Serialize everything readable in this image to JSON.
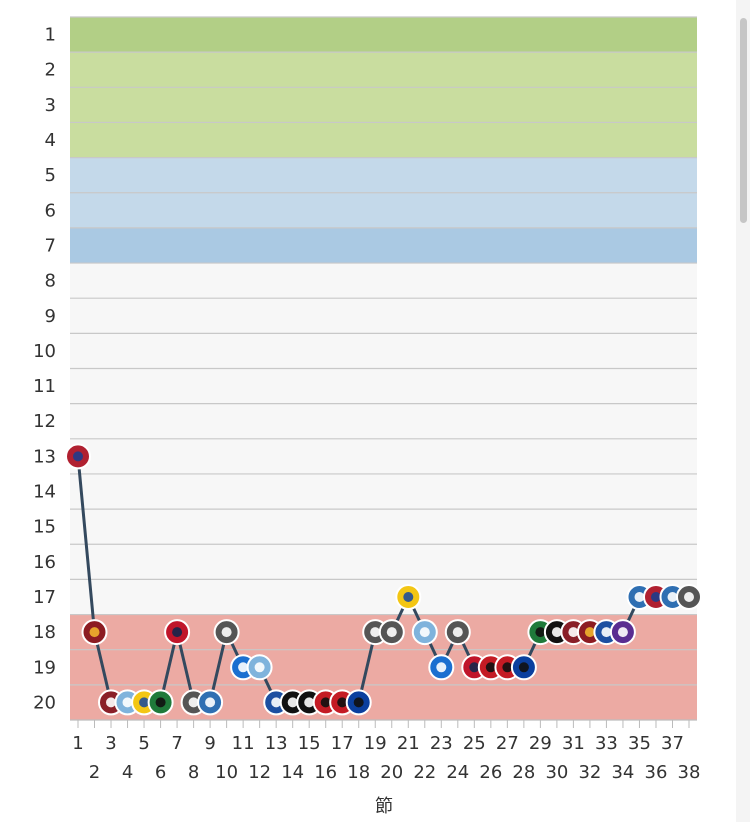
{
  "chart_data": {
    "type": "line",
    "xlabel": "節",
    "ylabel": "",
    "title": "",
    "x_ticks": [
      1,
      2,
      3,
      4,
      5,
      6,
      7,
      8,
      9,
      10,
      11,
      12,
      13,
      14,
      15,
      16,
      17,
      18,
      19,
      20,
      21,
      22,
      23,
      24,
      25,
      26,
      27,
      28,
      29,
      30,
      31,
      32,
      33,
      34,
      35,
      36,
      37,
      38
    ],
    "y_ticks": [
      1,
      2,
      3,
      4,
      5,
      6,
      7,
      8,
      9,
      10,
      11,
      12,
      13,
      14,
      15,
      16,
      17,
      18,
      19,
      20
    ],
    "xlim": [
      1,
      38
    ],
    "ylim": [
      1,
      20
    ],
    "y_inverted": true,
    "zones": [
      {
        "from": 1,
        "to": 1,
        "color": "#b2cf86"
      },
      {
        "from": 2,
        "to": 4,
        "color": "#c9dd9f"
      },
      {
        "from": 5,
        "to": 6,
        "color": "#c4d9ea"
      },
      {
        "from": 7,
        "to": 7,
        "color": "#aac9e3"
      },
      {
        "from": 8,
        "to": 17,
        "color": "#f7f7f7"
      },
      {
        "from": 18,
        "to": 20,
        "color": "#ecaaa3"
      }
    ],
    "series": [
      {
        "line_color": "#34495e",
        "points": [
          [
            1,
            13
          ],
          [
            2,
            18
          ],
          [
            3,
            20
          ],
          [
            4,
            20
          ],
          [
            5,
            20
          ],
          [
            6,
            20
          ],
          [
            7,
            18
          ],
          [
            8,
            20
          ],
          [
            9,
            20
          ],
          [
            10,
            18
          ],
          [
            11,
            19
          ],
          [
            12,
            19
          ],
          [
            13,
            20
          ],
          [
            14,
            20
          ],
          [
            15,
            20
          ],
          [
            16,
            20
          ],
          [
            17,
            20
          ],
          [
            18,
            20
          ],
          [
            19,
            18
          ],
          [
            20,
            18
          ],
          [
            21,
            17
          ],
          [
            22,
            18
          ],
          [
            23,
            19
          ],
          [
            24,
            18
          ],
          [
            25,
            19
          ],
          [
            26,
            19
          ],
          [
            27,
            19
          ],
          [
            28,
            19
          ],
          [
            29,
            18
          ],
          [
            30,
            18
          ],
          [
            31,
            18
          ],
          [
            32,
            18
          ],
          [
            33,
            18
          ],
          [
            34,
            18
          ],
          [
            35,
            17
          ],
          [
            36,
            17
          ],
          [
            37,
            17
          ],
          [
            38,
            17
          ]
        ],
        "markers": [
          "crest-red-blue",
          "crest-dark-red",
          "crest-maroon",
          "crest-light-blue",
          "crest-yellow-blue",
          "crest-green-black",
          "crest-red-navy",
          "crest-black-white",
          "crest-blue",
          "crest-black-white",
          "crest-blue-n",
          "crest-light-blue",
          "crest-blue-white",
          "crest-black-white-stripes",
          "crest-black-white-stripes",
          "crest-red-black",
          "crest-red-black",
          "crest-blue-black",
          "crest-black-white",
          "crest-black-white",
          "crest-yellow-blue",
          "crest-light-blue",
          "crest-blue-n",
          "crest-black-white",
          "crest-red-navy",
          "crest-red-black",
          "crest-red-black",
          "crest-blue-black",
          "crest-green-black",
          "crest-black-white-stripes",
          "crest-maroon",
          "crest-dark-red",
          "crest-blue-white",
          "crest-purple",
          "crest-blue",
          "crest-red-blue",
          "crest-blue",
          "crest-black-white"
        ]
      }
    ]
  },
  "marker_colors": {
    "crest-red-blue": [
      "#b02030",
      "#1e3c8c"
    ],
    "crest-dark-red": [
      "#8c1c22",
      "#f0b42d"
    ],
    "crest-maroon": [
      "#8a1f28",
      "#ffffff"
    ],
    "crest-light-blue": [
      "#7fb3dc",
      "#ffffff"
    ],
    "crest-yellow-blue": [
      "#f3c614",
      "#1f4d99"
    ],
    "crest-green-black": [
      "#1f7a3a",
      "#111111"
    ],
    "crest-red-navy": [
      "#c0152a",
      "#14264d"
    ],
    "crest-black-white": [
      "#555555",
      "#ffffff"
    ],
    "crest-blue": [
      "#2f6fb2",
      "#ffffff"
    ],
    "crest-blue-n": [
      "#1b6fd0",
      "#ffffff"
    ],
    "crest-blue-white": [
      "#1c4fa1",
      "#ffffff"
    ],
    "crest-black-white-stripes": [
      "#111111",
      "#ffffff"
    ],
    "crest-red-black": [
      "#c41b24",
      "#111111"
    ],
    "crest-blue-black": [
      "#0b3f9e",
      "#111111"
    ],
    "crest-purple": [
      "#5a2d91",
      "#ffffff"
    ]
  }
}
